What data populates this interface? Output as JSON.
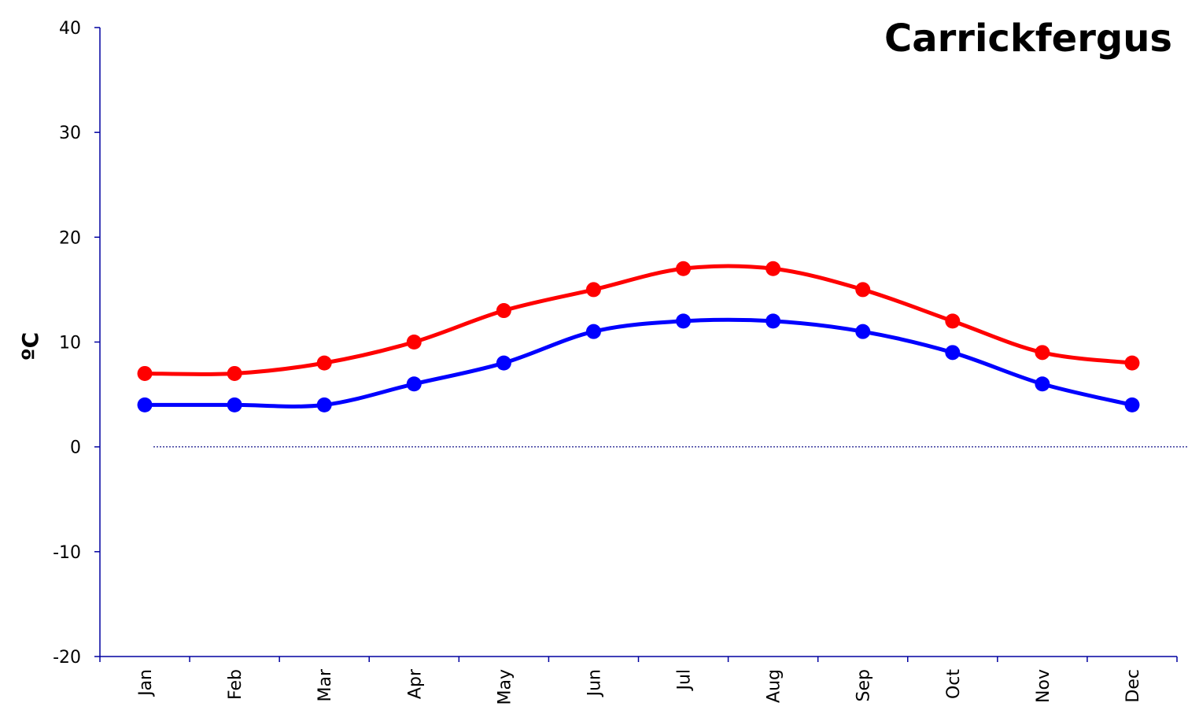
{
  "chart_data": {
    "type": "line",
    "title": "Carrickfergus",
    "ylabel": "ºC",
    "xlabel": "",
    "ylim": [
      -20,
      40
    ],
    "yticks": [
      -20,
      -10,
      0,
      10,
      20,
      30,
      40
    ],
    "categories": [
      "Jan",
      "Feb",
      "Mar",
      "Apr",
      "May",
      "Jun",
      "Jul",
      "Aug",
      "Sep",
      "Oct",
      "Nov",
      "Dec"
    ],
    "zero_line": true,
    "series": [
      {
        "color": "#ff0000",
        "values": [
          7,
          7,
          8,
          10,
          13,
          15,
          17,
          17,
          15,
          12,
          9,
          8
        ]
      },
      {
        "color": "#0000ff",
        "values": [
          4,
          4,
          4,
          6,
          8,
          11,
          12,
          12,
          11,
          9,
          6,
          4
        ]
      }
    ]
  }
}
